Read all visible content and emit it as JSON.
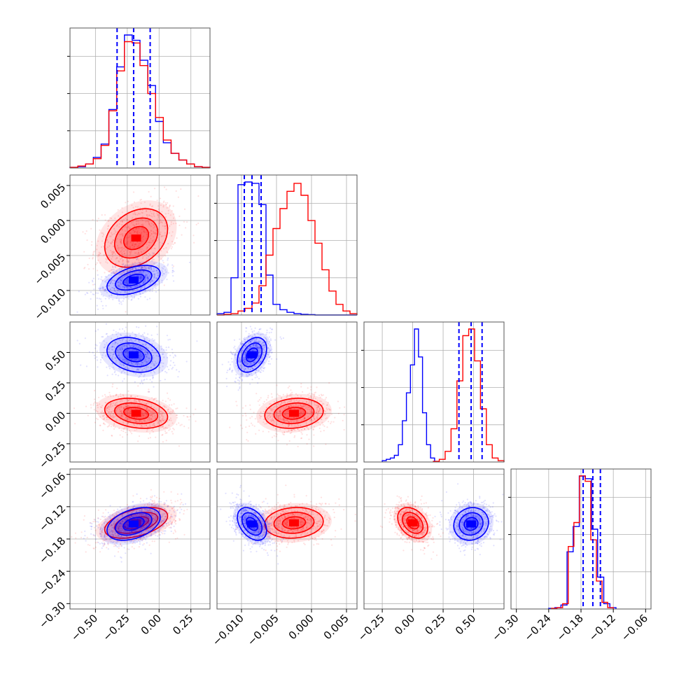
{
  "chart_data": {
    "type": "corner",
    "colors": {
      "primary": "#0000ff",
      "secondary": "#ff0000"
    },
    "grid": true,
    "parameters": [
      {
        "range": [
          -0.7,
          0.4
        ],
        "ticks": [
          -0.5,
          -0.25,
          0.0,
          0.25
        ],
        "tick_labels": [
          "−0.50",
          "−0.25",
          "0.00",
          "0.25"
        ]
      },
      {
        "range": [
          -0.0135,
          0.0065
        ],
        "ticks": [
          -0.01,
          -0.005,
          0.0,
          0.005
        ],
        "tick_labels": [
          "−0.010",
          "−0.005",
          "0.000",
          "0.005"
        ]
      },
      {
        "range": [
          -0.4,
          0.75
        ],
        "ticks": [
          -0.25,
          0.0,
          0.25,
          0.5
        ],
        "tick_labels": [
          "−0.25",
          "0.00",
          "0.25",
          "0.50"
        ]
      },
      {
        "range": [
          -0.31,
          -0.05
        ],
        "ticks": [
          -0.3,
          -0.24,
          -0.18,
          -0.12,
          -0.06
        ],
        "tick_labels": [
          "−0.30",
          "−0.24",
          "−0.18",
          "−0.12",
          "−0.06"
        ]
      }
    ],
    "blue": {
      "mean": [
        -0.2,
        -0.0085,
        0.48,
        -0.152
      ],
      "std": [
        0.11,
        0.0011,
        0.075,
        0.016
      ],
      "quantile_lines": [
        [
          -0.33,
          -0.2,
          -0.07
        ],
        [
          -0.0096,
          -0.0085,
          -0.0072
        ],
        [
          0.38,
          0.48,
          0.57
        ],
        [
          -0.176,
          -0.158,
          -0.144
        ]
      ]
    },
    "red": {
      "mean": [
        -0.18,
        -0.0025,
        0.0,
        -0.15
      ],
      "std": [
        0.13,
        0.0022,
        0.065,
        0.015
      ]
    },
    "hist_blue": [
      [
        0.5,
        1,
        3,
        8,
        18,
        44,
        76,
        100,
        96,
        81,
        62,
        35,
        19,
        11,
        6,
        3,
        1,
        0.5
      ],
      [
        1,
        2,
        28,
        98,
        100,
        99,
        83,
        30,
        8,
        4,
        2,
        1,
        0.5,
        0.3,
        0,
        0,
        0,
        0,
        0,
        0
      ],
      [
        1,
        2,
        3,
        5,
        13,
        31,
        52,
        73,
        100,
        79,
        37,
        13,
        3
      ],
      [
        0.5,
        1,
        3,
        43,
        62,
        100,
        98,
        60,
        24,
        4,
        1
      ]
    ],
    "hist_red": [
      [
        0.5,
        1.5,
        3,
        7,
        17,
        43,
        73,
        95,
        94,
        77,
        56,
        38,
        21,
        11,
        6,
        3,
        1,
        0.5
      ],
      [
        0,
        0.5,
        1,
        3,
        5,
        9,
        22,
        45,
        65,
        80,
        93,
        99,
        90,
        71,
        54,
        34,
        18,
        8,
        3,
        1
      ],
      [
        0.5,
        2,
        8,
        25,
        61,
        95,
        100,
        76,
        40,
        13,
        3,
        1
      ],
      [
        0.5,
        1,
        4,
        47,
        65,
        100,
        96,
        52,
        21,
        5,
        1
      ]
    ],
    "hist_bins": [
      [
        -0.7,
        0.4
      ],
      [
        -0.0135,
        0.0065
      ],
      [
        [
          -0.25,
          0.18
        ],
        [
          0.17,
          0.75
        ]
      ],
      [
        [
          -0.24,
          -0.115
        ],
        [
          -0.235,
          -0.12
        ]
      ]
    ]
  }
}
